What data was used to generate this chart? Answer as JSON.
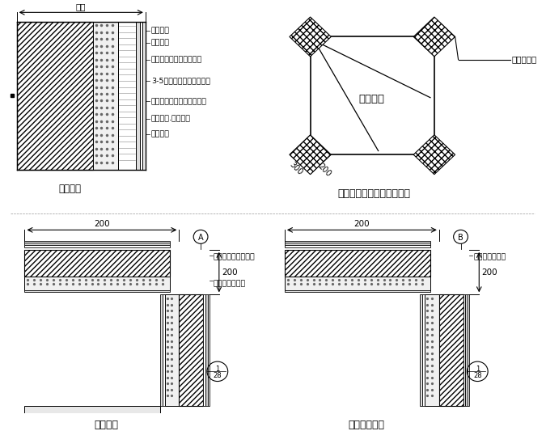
{
  "bg_color": "#ffffff",
  "title_top_right": "门洞窗口耐碱玻纤网加强图",
  "label_wall_thick": "墙厉",
  "label_base_wall": "基层墙体",
  "label_interface_mortar": "界面砂浆",
  "label_insulation": "胶粉聚苯颗粒保温砂浆层",
  "label_crack": "3-5厉抗裂砂浆复合耐碱网",
  "label_crack2": "布（首层双层耐碱玻纤网）",
  "label_elastic": "弹性底涂.柔性腻子",
  "label_outer_paint": "外墙涂料",
  "label_coating_wall": "涂料外墙",
  "label_door_opening": "门洞窗口",
  "label_alkali_net": "耐碱玻纤网",
  "label_dim_300": "300",
  "label_dim_200_br": "200",
  "label_first_floor_corner": "首层阳角",
  "label_second_floor_corner": "二层以上阳角",
  "label_200": "200",
  "label_normal_alkali": "普通耐碱玻纤网搭接",
  "label_alkali_butt": "耐碱玻纤网对接",
  "label_alkali_lap": "耐碱玻纤网搭接",
  "label_A": "A",
  "label_B": "B"
}
